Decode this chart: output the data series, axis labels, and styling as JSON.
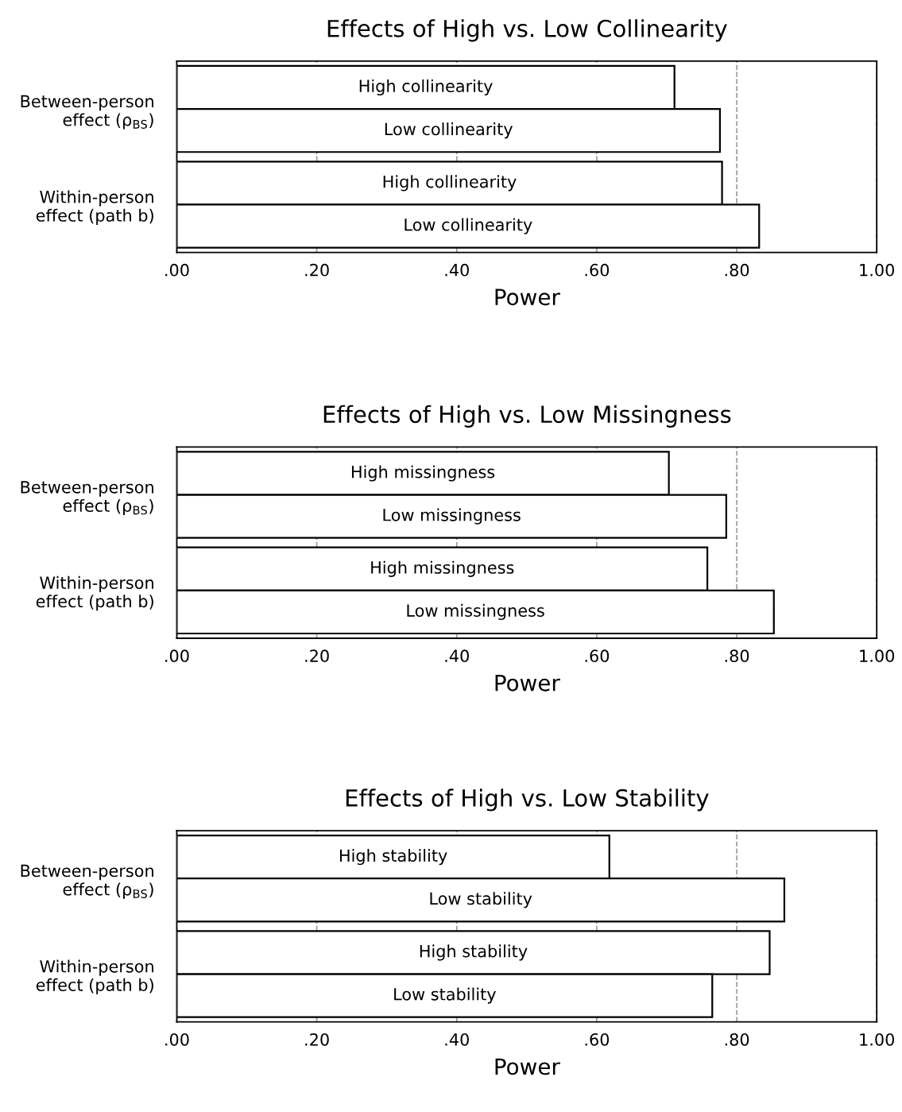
{
  "chart_data": [
    {
      "type": "bar",
      "orientation": "horizontal",
      "title": "Effects of High vs. Low Collinearity",
      "xlabel": "Power",
      "categories": [
        "Between-person\neffect (ρ$_{BS}$)",
        "Within-person\neffect (path b)"
      ],
      "series": [
        {
          "name": "High collinearity",
          "color": "#ffffff",
          "values": [
            0.711,
            0.779
          ]
        },
        {
          "name": "Low collinearity",
          "color": "#ffffff",
          "values": [
            0.776,
            0.832
          ]
        }
      ],
      "xlim": [
        0,
        1
      ],
      "xticks": [
        {
          "value": 0,
          "label": ".00"
        },
        {
          "value": 0.2,
          "label": ".20"
        },
        {
          "value": 0.4,
          "label": ".40"
        },
        {
          "value": 0.6,
          "label": ".60"
        },
        {
          "value": 0.8,
          "label": ".80"
        },
        {
          "value": 1,
          "label": "1.00"
        }
      ],
      "grid": "x"
    },
    {
      "type": "bar",
      "orientation": "horizontal",
      "title": "Effects of High vs. Low Missingness",
      "xlabel": "Power",
      "categories": [
        "Between-person\neffect (ρ$_{BS}$)",
        "Within-person\neffect (path b)"
      ],
      "series": [
        {
          "name": "High missingness",
          "color": "#ffffff",
          "values": [
            0.703,
            0.758
          ]
        },
        {
          "name": "Low missingness",
          "color": "#ffffff",
          "values": [
            0.785,
            0.853
          ]
        }
      ],
      "xlim": [
        0,
        1
      ],
      "xticks": [
        {
          "value": 0,
          "label": ".00"
        },
        {
          "value": 0.2,
          "label": ".20"
        },
        {
          "value": 0.4,
          "label": ".40"
        },
        {
          "value": 0.6,
          "label": ".60"
        },
        {
          "value": 0.8,
          "label": ".80"
        },
        {
          "value": 1,
          "label": "1.00"
        }
      ],
      "grid": "x"
    },
    {
      "type": "bar",
      "orientation": "horizontal",
      "title": "Effects of High vs. Low Stability",
      "xlabel": "Power",
      "categories": [
        "Between-person\neffect (ρ$_{BS}$)",
        "Within-person\neffect (path b)"
      ],
      "series": [
        {
          "name": "High stability",
          "color": "#ffffff",
          "values": [
            0.618,
            0.847
          ]
        },
        {
          "name": "Low stability",
          "color": "#ffffff",
          "values": [
            0.868,
            0.765
          ]
        }
      ],
      "xlim": [
        0,
        1
      ],
      "xticks": [
        {
          "value": 0,
          "label": ".00"
        },
        {
          "value": 0.2,
          "label": ".20"
        },
        {
          "value": 0.4,
          "label": ".40"
        },
        {
          "value": 0.6,
          "label": ".60"
        },
        {
          "value": 0.8,
          "label": ".80"
        },
        {
          "value": 1,
          "label": "1.00"
        }
      ],
      "grid": "x"
    }
  ]
}
